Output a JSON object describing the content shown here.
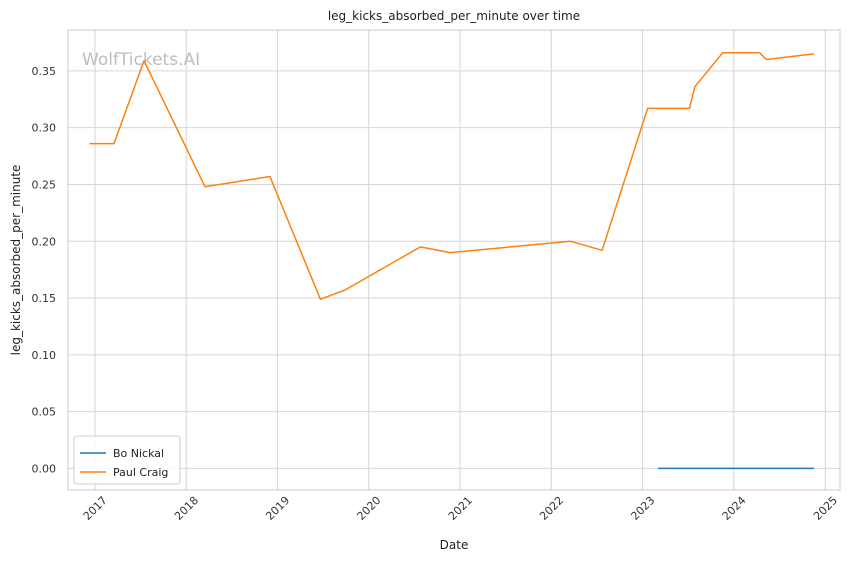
{
  "chart_data": {
    "type": "line",
    "title": "leg_kicks_absorbed_per_minute over time",
    "xlabel": "Date",
    "ylabel": "leg_kicks_absorbed_per_minute",
    "watermark": "WolfTickets.AI",
    "x_ticks": [
      "2017",
      "2018",
      "2019",
      "2020",
      "2021",
      "2022",
      "2023",
      "2024",
      "2025"
    ],
    "y_ticks": [
      "0.00",
      "0.05",
      "0.10",
      "0.15",
      "0.20",
      "0.25",
      "0.30",
      "0.35"
    ],
    "xlim": [
      "2016-09-15",
      "2025-03-01"
    ],
    "ylim": [
      -0.019,
      0.386
    ],
    "grid": true,
    "legend_position": "lower-left",
    "series": [
      {
        "name": "Bo Nickal",
        "color": "#1f77b4",
        "points": [
          {
            "x": "2023-03-04",
            "y": 0.0
          },
          {
            "x": "2024-11-16",
            "y": 0.0
          }
        ]
      },
      {
        "name": "Paul Craig",
        "color": "#ff7f0e",
        "points": [
          {
            "x": "2016-12-10",
            "y": 0.286
          },
          {
            "x": "2017-03-18",
            "y": 0.286
          },
          {
            "x": "2017-07-16",
            "y": 0.359
          },
          {
            "x": "2018-03-17",
            "y": 0.248
          },
          {
            "x": "2018-12-02",
            "y": 0.257
          },
          {
            "x": "2019-06-22",
            "y": 0.149
          },
          {
            "x": "2019-09-28",
            "y": 0.157
          },
          {
            "x": "2020-07-26",
            "y": 0.195
          },
          {
            "x": "2020-11-21",
            "y": 0.19
          },
          {
            "x": "2022-03-19",
            "y": 0.2
          },
          {
            "x": "2022-07-23",
            "y": 0.192
          },
          {
            "x": "2023-01-21",
            "y": 0.317
          },
          {
            "x": "2023-07-08",
            "y": 0.317
          },
          {
            "x": "2023-07-29",
            "y": 0.336
          },
          {
            "x": "2023-11-18",
            "y": 0.366
          },
          {
            "x": "2024-04-13",
            "y": 0.366
          },
          {
            "x": "2024-05-11",
            "y": 0.36
          },
          {
            "x": "2024-11-16",
            "y": 0.365
          }
        ]
      }
    ]
  }
}
